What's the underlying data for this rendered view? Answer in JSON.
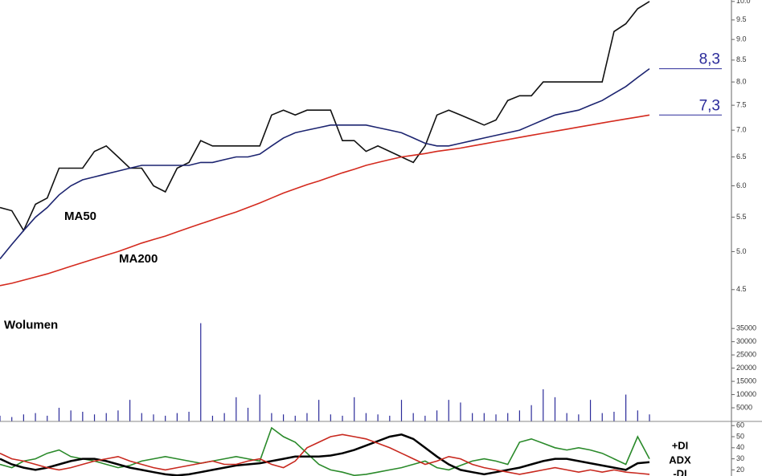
{
  "chart_data": [
    {
      "type": "line",
      "log_scale": true,
      "ylim": [
        4.36,
        10.04
      ],
      "yticks": [
        4.5,
        {
          "value": 5,
          "label": "5.0"
        },
        5.5,
        {
          "value": 6,
          "label": "6.0"
        },
        6.5,
        {
          "value": 7,
          "label": "7.0"
        },
        7.5,
        {
          "value": 8,
          "label": "8.0"
        },
        8.5,
        {
          "value": 9,
          "label": "9.0"
        },
        9.5,
        {
          "value": 10,
          "label": "10.0"
        }
      ],
      "series": [
        {
          "color": "#111111",
          "values": [
            5.65,
            5.6,
            5.3,
            5.7,
            5.8,
            6.3,
            6.3,
            6.3,
            6.6,
            6.7,
            6.5,
            6.3,
            6.3,
            6.0,
            5.9,
            6.3,
            6.4,
            6.8,
            6.7,
            6.7,
            6.7,
            6.7,
            6.7,
            7.3,
            7.4,
            7.3,
            7.4,
            7.4,
            7.4,
            6.8,
            6.8,
            6.6,
            6.7,
            6.6,
            6.5,
            6.4,
            6.7,
            7.3,
            7.4,
            7.3,
            7.2,
            7.1,
            7.2,
            7.6,
            7.7,
            7.7,
            8.0,
            8.0,
            8.0,
            8.0,
            8.0,
            8.0,
            9.2,
            9.4,
            9.8,
            10.0
          ]
        },
        {
          "name": "MA50",
          "color": "#1c2470",
          "values": [
            4.9,
            5.1,
            5.3,
            5.5,
            5.65,
            5.85,
            6.0,
            6.1,
            6.15,
            6.2,
            6.25,
            6.3,
            6.35,
            6.35,
            6.35,
            6.35,
            6.35,
            6.4,
            6.4,
            6.45,
            6.5,
            6.5,
            6.55,
            6.7,
            6.85,
            6.95,
            7.0,
            7.05,
            7.1,
            7.1,
            7.1,
            7.1,
            7.05,
            7.0,
            6.95,
            6.85,
            6.75,
            6.7,
            6.7,
            6.75,
            6.8,
            6.85,
            6.9,
            6.95,
            7.0,
            7.1,
            7.2,
            7.3,
            7.35,
            7.4,
            7.5,
            7.6,
            7.75,
            7.9,
            8.1,
            8.3
          ]
        },
        {
          "name": "MA200",
          "color": "#d42a1e",
          "values": [
            4.55,
            4.58,
            4.62,
            4.66,
            4.7,
            4.75,
            4.8,
            4.85,
            4.9,
            4.95,
            5.0,
            5.06,
            5.12,
            5.17,
            5.22,
            5.28,
            5.34,
            5.4,
            5.46,
            5.52,
            5.58,
            5.65,
            5.72,
            5.8,
            5.88,
            5.95,
            6.02,
            6.08,
            6.15,
            6.22,
            6.28,
            6.35,
            6.4,
            6.45,
            6.5,
            6.53,
            6.56,
            6.6,
            6.63,
            6.66,
            6.7,
            6.74,
            6.78,
            6.82,
            6.86,
            6.9,
            6.94,
            6.98,
            7.02,
            7.06,
            7.1,
            7.14,
            7.18,
            7.22,
            7.26,
            7.3
          ]
        }
      ],
      "annotations": [
        {
          "text": "8,3",
          "value": 8.3
        },
        {
          "text": "7,3",
          "value": 7.3
        }
      ]
    },
    {
      "type": "bar",
      "title": "Wolumen",
      "color": "#2b2b9a",
      "ylim": [
        0,
        37000
      ],
      "yticks": [
        5000,
        10000,
        15000,
        20000,
        25000,
        30000,
        35000
      ],
      "values": [
        2000,
        1500,
        2500,
        3000,
        2000,
        5000,
        4000,
        3500,
        2500,
        3000,
        4000,
        8000,
        3000,
        2500,
        2000,
        3000,
        3500,
        37000,
        2000,
        3000,
        9000,
        5000,
        10000,
        3000,
        2500,
        2000,
        3000,
        8000,
        2500,
        2000,
        9000,
        3000,
        2500,
        2000,
        8000,
        3000,
        2000,
        4000,
        8000,
        7000,
        3000,
        3000,
        2500,
        3000,
        4000,
        6000,
        12000,
        9000,
        3000,
        2500,
        8000,
        3000,
        3500,
        10000,
        4000,
        2500
      ]
    },
    {
      "type": "line",
      "ylim": [
        15,
        64
      ],
      "yticks": [
        20,
        30,
        40,
        50,
        60
      ],
      "series": [
        {
          "name": "+DI",
          "color": "#2a8a2a",
          "values": [
            25,
            22,
            28,
            30,
            35,
            38,
            32,
            30,
            28,
            25,
            22,
            24,
            28,
            30,
            32,
            30,
            28,
            26,
            28,
            30,
            32,
            30,
            28,
            58,
            50,
            45,
            35,
            25,
            20,
            18,
            15,
            16,
            18,
            20,
            22,
            25,
            28,
            22,
            20,
            24,
            28,
            30,
            28,
            25,
            45,
            48,
            44,
            40,
            38,
            40,
            38,
            35,
            30,
            25,
            50,
            30
          ]
        },
        {
          "name": "ADX",
          "color": "#000000",
          "width": 2.5,
          "values": [
            30,
            25,
            22,
            20,
            22,
            25,
            28,
            30,
            30,
            28,
            25,
            22,
            20,
            18,
            16,
            15,
            16,
            18,
            20,
            22,
            24,
            25,
            26,
            28,
            30,
            32,
            32,
            32,
            33,
            35,
            38,
            42,
            46,
            50,
            52,
            48,
            40,
            32,
            25,
            20,
            18,
            16,
            18,
            20,
            22,
            25,
            28,
            30,
            30,
            28,
            26,
            24,
            22,
            20,
            26,
            27
          ]
        },
        {
          "name": "-DI",
          "color": "#c8281e",
          "values": [
            35,
            30,
            28,
            25,
            22,
            20,
            22,
            25,
            28,
            30,
            32,
            28,
            25,
            22,
            20,
            22,
            24,
            26,
            28,
            25,
            25,
            28,
            30,
            25,
            22,
            28,
            40,
            45,
            50,
            52,
            50,
            48,
            44,
            40,
            35,
            30,
            25,
            28,
            32,
            30,
            25,
            22,
            20,
            18,
            16,
            18,
            20,
            22,
            20,
            18,
            20,
            18,
            20,
            18,
            17,
            16
          ]
        }
      ]
    }
  ]
}
